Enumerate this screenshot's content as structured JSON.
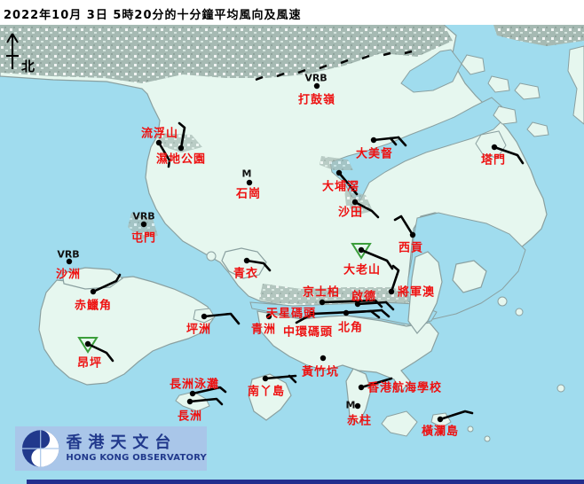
{
  "title": "2022年10月 3日 5時20分的十分鐘平均風向及風速",
  "north_label": "北",
  "logo": {
    "name_zh": "香港天文台",
    "name_en": "HONG KONG OBSERVATORY"
  },
  "colors": {
    "sea": "#a0dcee",
    "land": "#e6f7ef",
    "urban": "#a6bab3",
    "coastline": "#8aa0a0",
    "station_label_red": "#ee1111",
    "wind_barb_black": "#000000",
    "gust_triangle_green": "#3b9e3b",
    "logo_bar_bg": "#a9c6e9",
    "logo_navy": "#21398c",
    "bottom_strip_navy": "#232f8e"
  },
  "stations": [
    {
      "id": "takwuling",
      "label": "打鼓嶺",
      "label_c": [
        357,
        111
      ],
      "dot": [
        357,
        97
      ],
      "marker": {
        "text": "VRB",
        "c": [
          356,
          88
        ]
      },
      "barbs": [],
      "triangle": false
    },
    {
      "id": "laufaushan",
      "label": "流浮山",
      "label_c": [
        180,
        149
      ],
      "dot": [
        179,
        161
      ],
      "marker": null,
      "barbs": [
        [
          [
            179,
            161
          ],
          [
            191,
            181
          ],
          [
            190,
            188
          ]
        ]
      ],
      "triangle": false
    },
    {
      "id": "wetlandpark",
      "label": "濕地公園",
      "label_c": [
        204,
        178
      ],
      "dot": [
        204,
        167
      ],
      "marker": null,
      "barbs": [
        [
          [
            204,
            167
          ],
          [
            208,
            144
          ],
          [
            202,
            139
          ]
        ]
      ],
      "triangle": false
    },
    {
      "id": "shekkong",
      "label": "石崗",
      "label_c": [
        280,
        217
      ],
      "dot": [
        281,
        206
      ],
      "marker": {
        "text": "M",
        "c": [
          278,
          196
        ]
      },
      "barbs": [],
      "triangle": false
    },
    {
      "id": "tuenmun",
      "label": "屯門",
      "label_c": [
        162,
        267
      ],
      "dot": [
        162,
        253
      ],
      "marker": {
        "text": "VRB",
        "c": [
          162,
          244
        ]
      },
      "barbs": [],
      "triangle": false
    },
    {
      "id": "shachau",
      "label": "沙洲",
      "label_c": [
        77,
        308
      ],
      "dot": [
        78,
        295
      ],
      "marker": {
        "text": "VRB",
        "c": [
          77,
          287
        ]
      },
      "barbs": [],
      "triangle": false
    },
    {
      "id": "cheklapkok",
      "label": "赤鱲角",
      "label_c": [
        105,
        343
      ],
      "dot": [
        105,
        329
      ],
      "marker": null,
      "barbs": [
        [
          [
            105,
            329
          ],
          [
            131,
            317
          ],
          [
            135,
            310
          ]
        ]
      ],
      "triangle": false
    },
    {
      "id": "taimeituk",
      "label": "大美督",
      "label_c": [
        422,
        172
      ],
      "dot": [
        421,
        158
      ],
      "marker": null,
      "barbs": [
        [
          [
            421,
            158
          ],
          [
            449,
            155
          ]
        ],
        [
          [
            449,
            155
          ],
          [
            457,
            164
          ]
        ],
        [
          [
            440,
            156
          ],
          [
            446,
            163
          ]
        ]
      ],
      "triangle": false
    },
    {
      "id": "taipokau",
      "label": "大埔滘",
      "label_c": [
        384,
        209
      ],
      "dot": [
        382,
        195
      ],
      "marker": null,
      "barbs": [
        [
          [
            382,
            195
          ],
          [
            402,
            219
          ]
        ]
      ],
      "triangle": false
    },
    {
      "id": "shatin",
      "label": "沙田",
      "label_c": [
        395,
        238
      ],
      "dot": [
        400,
        228
      ],
      "marker": null,
      "barbs": [
        [
          [
            400,
            228
          ],
          [
            419,
            238
          ],
          [
            426,
            245
          ]
        ]
      ],
      "triangle": false
    },
    {
      "id": "tapmun",
      "label": "塔門",
      "label_c": [
        556,
        179
      ],
      "dot": [
        557,
        166
      ],
      "marker": null,
      "barbs": [
        [
          [
            557,
            166
          ],
          [
            583,
            175
          ],
          [
            589,
            184
          ]
        ]
      ],
      "triangle": false
    },
    {
      "id": "saikung",
      "label": "西貢",
      "label_c": [
        463,
        278
      ],
      "dot": [
        465,
        265
      ],
      "marker": null,
      "barbs": [
        [
          [
            465,
            265
          ],
          [
            452,
            244
          ],
          [
            445,
            248
          ]
        ]
      ],
      "triangle": false
    },
    {
      "id": "tatescairn",
      "label": "大老山",
      "label_c": [
        408,
        303
      ],
      "dot": [
        407,
        282
      ],
      "marker": null,
      "barbs": [
        [
          [
            407,
            282
          ],
          [
            436,
            294
          ],
          [
            442,
            303
          ]
        ]
      ],
      "triangle": true
    },
    {
      "id": "tseungkwano",
      "label": "將軍澳",
      "label_c": [
        469,
        328
      ],
      "dot": [
        441,
        329
      ],
      "marker": null,
      "barbs": [
        [
          [
            441,
            329
          ],
          [
            449,
            305
          ],
          [
            443,
            300
          ]
        ]
      ],
      "triangle": false
    },
    {
      "id": "kingspark",
      "label": "京士柏",
      "label_c": [
        362,
        328
      ],
      "dot": [
        363,
        341
      ],
      "marker": null,
      "barbs": [
        [
          [
            363,
            341
          ],
          [
            423,
            339
          ]
        ],
        [
          [
            423,
            339
          ],
          [
            430,
            346
          ]
        ]
      ],
      "triangle": false
    },
    {
      "id": "kaitak",
      "label": "啟德",
      "label_c": [
        410,
        333
      ],
      "dot": [
        403,
        343
      ],
      "marker": null,
      "barbs": [
        [
          [
            403,
            343
          ],
          [
            435,
            341
          ]
        ],
        [
          [
            435,
            341
          ],
          [
            443,
            349
          ]
        ]
      ],
      "triangle": false
    },
    {
      "id": "starferry",
      "label": "天星碼頭",
      "label_c": [
        328,
        352
      ],
      "dot": [
        352,
        354
      ],
      "marker": null,
      "barbs": [
        [
          [
            352,
            354
          ],
          [
            418,
            351
          ]
        ],
        [
          [
            418,
            351
          ],
          [
            427,
            358
          ]
        ]
      ],
      "triangle": false
    },
    {
      "id": "centralpier",
      "label": "中環碼頭",
      "label_c": [
        347,
        373
      ],
      "dot": null,
      "marker": null,
      "barbs": [
        [
          [
            352,
            354
          ],
          [
            334,
            364
          ]
        ]
      ],
      "triangle": false
    },
    {
      "id": "northpoint",
      "label": "北角",
      "label_c": [
        395,
        368
      ],
      "dot": [
        390,
        353
      ],
      "marker": null,
      "barbs": [
        [
          [
            390,
            353
          ],
          [
            430,
            350
          ]
        ],
        [
          [
            430,
            350
          ],
          [
            438,
            357
          ]
        ]
      ],
      "triangle": false
    },
    {
      "id": "greenisland",
      "label": "青洲",
      "label_c": [
        297,
        370
      ],
      "dot": [
        303,
        357
      ],
      "marker": null,
      "barbs": [],
      "triangle": false
    },
    {
      "id": "tsingyi",
      "label": "青衣",
      "label_c": [
        277,
        307
      ],
      "dot": [
        278,
        294
      ],
      "marker": null,
      "barbs": [
        [
          [
            278,
            294
          ],
          [
            297,
            297
          ],
          [
            304,
            305
          ]
        ]
      ],
      "triangle": false
    },
    {
      "id": "pengchau",
      "label": "坪洲",
      "label_c": [
        224,
        370
      ],
      "dot": [
        230,
        357
      ],
      "marker": null,
      "barbs": [
        [
          [
            230,
            357
          ],
          [
            260,
            354
          ],
          [
            269,
            365
          ]
        ]
      ],
      "triangle": false
    },
    {
      "id": "wongchukhang",
      "label": "黃竹坑",
      "label_c": [
        361,
        418
      ],
      "dot": [
        364,
        404
      ],
      "marker": null,
      "barbs": [],
      "triangle": false
    },
    {
      "id": "ngongping",
      "label": "昂坪",
      "label_c": [
        101,
        408
      ],
      "dot": [
        99,
        388
      ],
      "marker": null,
      "barbs": [
        [
          [
            99,
            388
          ],
          [
            120,
            398
          ],
          [
            127,
            407
          ]
        ]
      ],
      "triangle": true
    },
    {
      "id": "cheungchaubeach",
      "label": "長洲泳灘",
      "label_c": [
        219,
        432
      ],
      "dot": [
        217,
        444
      ],
      "marker": null,
      "barbs": [
        [
          [
            217,
            444
          ],
          [
            248,
            437
          ],
          [
            254,
            442
          ]
        ]
      ],
      "triangle": false
    },
    {
      "id": "cheungchau",
      "label": "長洲",
      "label_c": [
        214,
        468
      ],
      "dot": [
        214,
        453
      ],
      "marker": null,
      "barbs": [
        [
          [
            214,
            453
          ],
          [
            244,
            450
          ],
          [
            250,
            456
          ]
        ]
      ],
      "triangle": false
    },
    {
      "id": "lamma",
      "label": "南丫島",
      "label_c": [
        300,
        440
      ],
      "dot": [
        299,
        427
      ],
      "marker": null,
      "barbs": [
        [
          [
            299,
            427
          ],
          [
            333,
            424
          ]
        ],
        [
          [
            326,
            424
          ],
          [
            333,
            431
          ]
        ]
      ],
      "triangle": false
    },
    {
      "id": "seaschool",
      "label": "香港航海學校",
      "label_c": [
        456,
        436
      ],
      "dot": [
        407,
        437
      ],
      "marker": null,
      "barbs": [
        [
          [
            407,
            437
          ],
          [
            441,
            427
          ]
        ]
      ],
      "triangle": false
    },
    {
      "id": "stanley",
      "label": "赤柱",
      "label_c": [
        405,
        473
      ],
      "dot": [
        403,
        458
      ],
      "marker": {
        "text": "M",
        "c": [
          395,
          457
        ]
      },
      "barbs": [],
      "triangle": false
    },
    {
      "id": "waglan",
      "label": "橫瀾島",
      "label_c": [
        496,
        485
      ],
      "dot": [
        496,
        473
      ],
      "marker": null,
      "barbs": [
        [
          [
            496,
            473
          ],
          [
            524,
            464
          ],
          [
            532,
            466
          ]
        ]
      ],
      "triangle": false
    }
  ]
}
